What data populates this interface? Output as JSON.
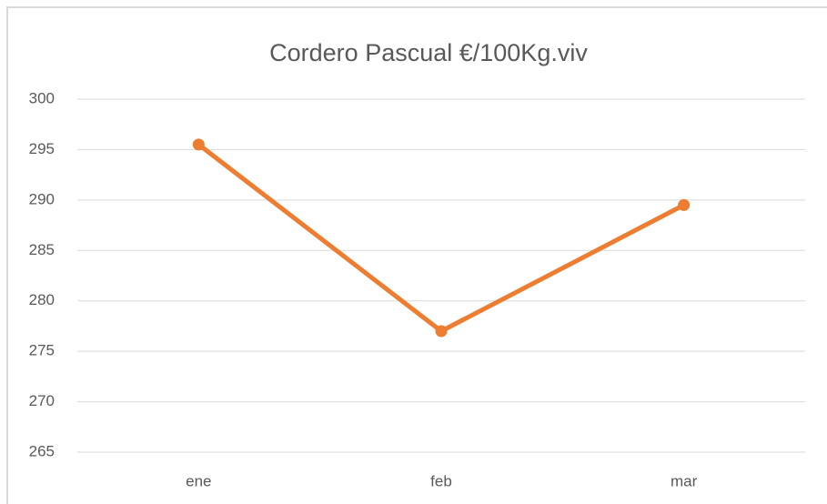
{
  "chart_data": {
    "type": "line",
    "title": "Cordero Pascual €/100Kg.viv",
    "categories": [
      "ene",
      "feb",
      "mar"
    ],
    "series": [
      {
        "name": "Cordero Pascual €/100Kg.viv",
        "color": "#ed7d31",
        "values": [
          295.5,
          277,
          289.5
        ]
      }
    ],
    "ylim": [
      265,
      300
    ],
    "yticks": [
      265,
      270,
      275,
      280,
      285,
      290,
      295,
      300
    ],
    "grid": true
  }
}
